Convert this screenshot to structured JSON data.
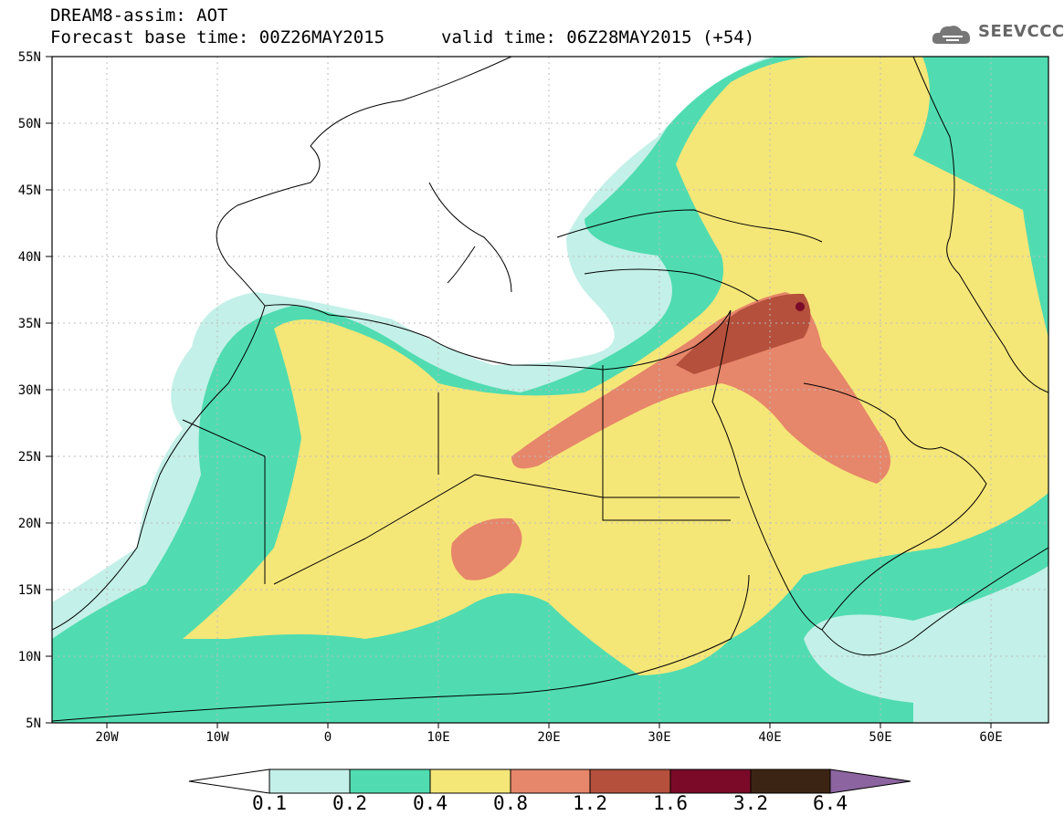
{
  "header": {
    "product": "DREAM8-assim: AOT",
    "base_time": "Forecast base time: 00Z26MAY2015",
    "valid_time": "valid time: 06Z28MAY2015 (+54)",
    "logo": "SEEVCCC"
  },
  "map": {
    "lon_range": [
      -25,
      65
    ],
    "lat_range": [
      5,
      55
    ],
    "lat_labels": [
      "5N",
      "10N",
      "15N",
      "20N",
      "25N",
      "30N",
      "35N",
      "40N",
      "45N",
      "50N",
      "55N"
    ],
    "lon_labels": [
      "20W",
      "10W",
      "0",
      "10E",
      "20E",
      "30E",
      "40E",
      "50E",
      "60E"
    ]
  },
  "legend": {
    "labels": [
      "0.1",
      "0.2",
      "0.4",
      "0.8",
      "1.2",
      "1.6",
      "3.2",
      "6.4"
    ],
    "colors": [
      "#ffffff",
      "#c3f0e8",
      "#50dcb0",
      "#f5e678",
      "#e6866a",
      "#b4503c",
      "#7a0a28",
      "#3c2414",
      "#8c64a0"
    ]
  },
  "colors": {
    "c1": "#c3f0e8",
    "c2": "#50dcb0",
    "c3": "#f5e678",
    "c4": "#e6866a",
    "c5": "#b4503c",
    "c6": "#7a0a28"
  }
}
